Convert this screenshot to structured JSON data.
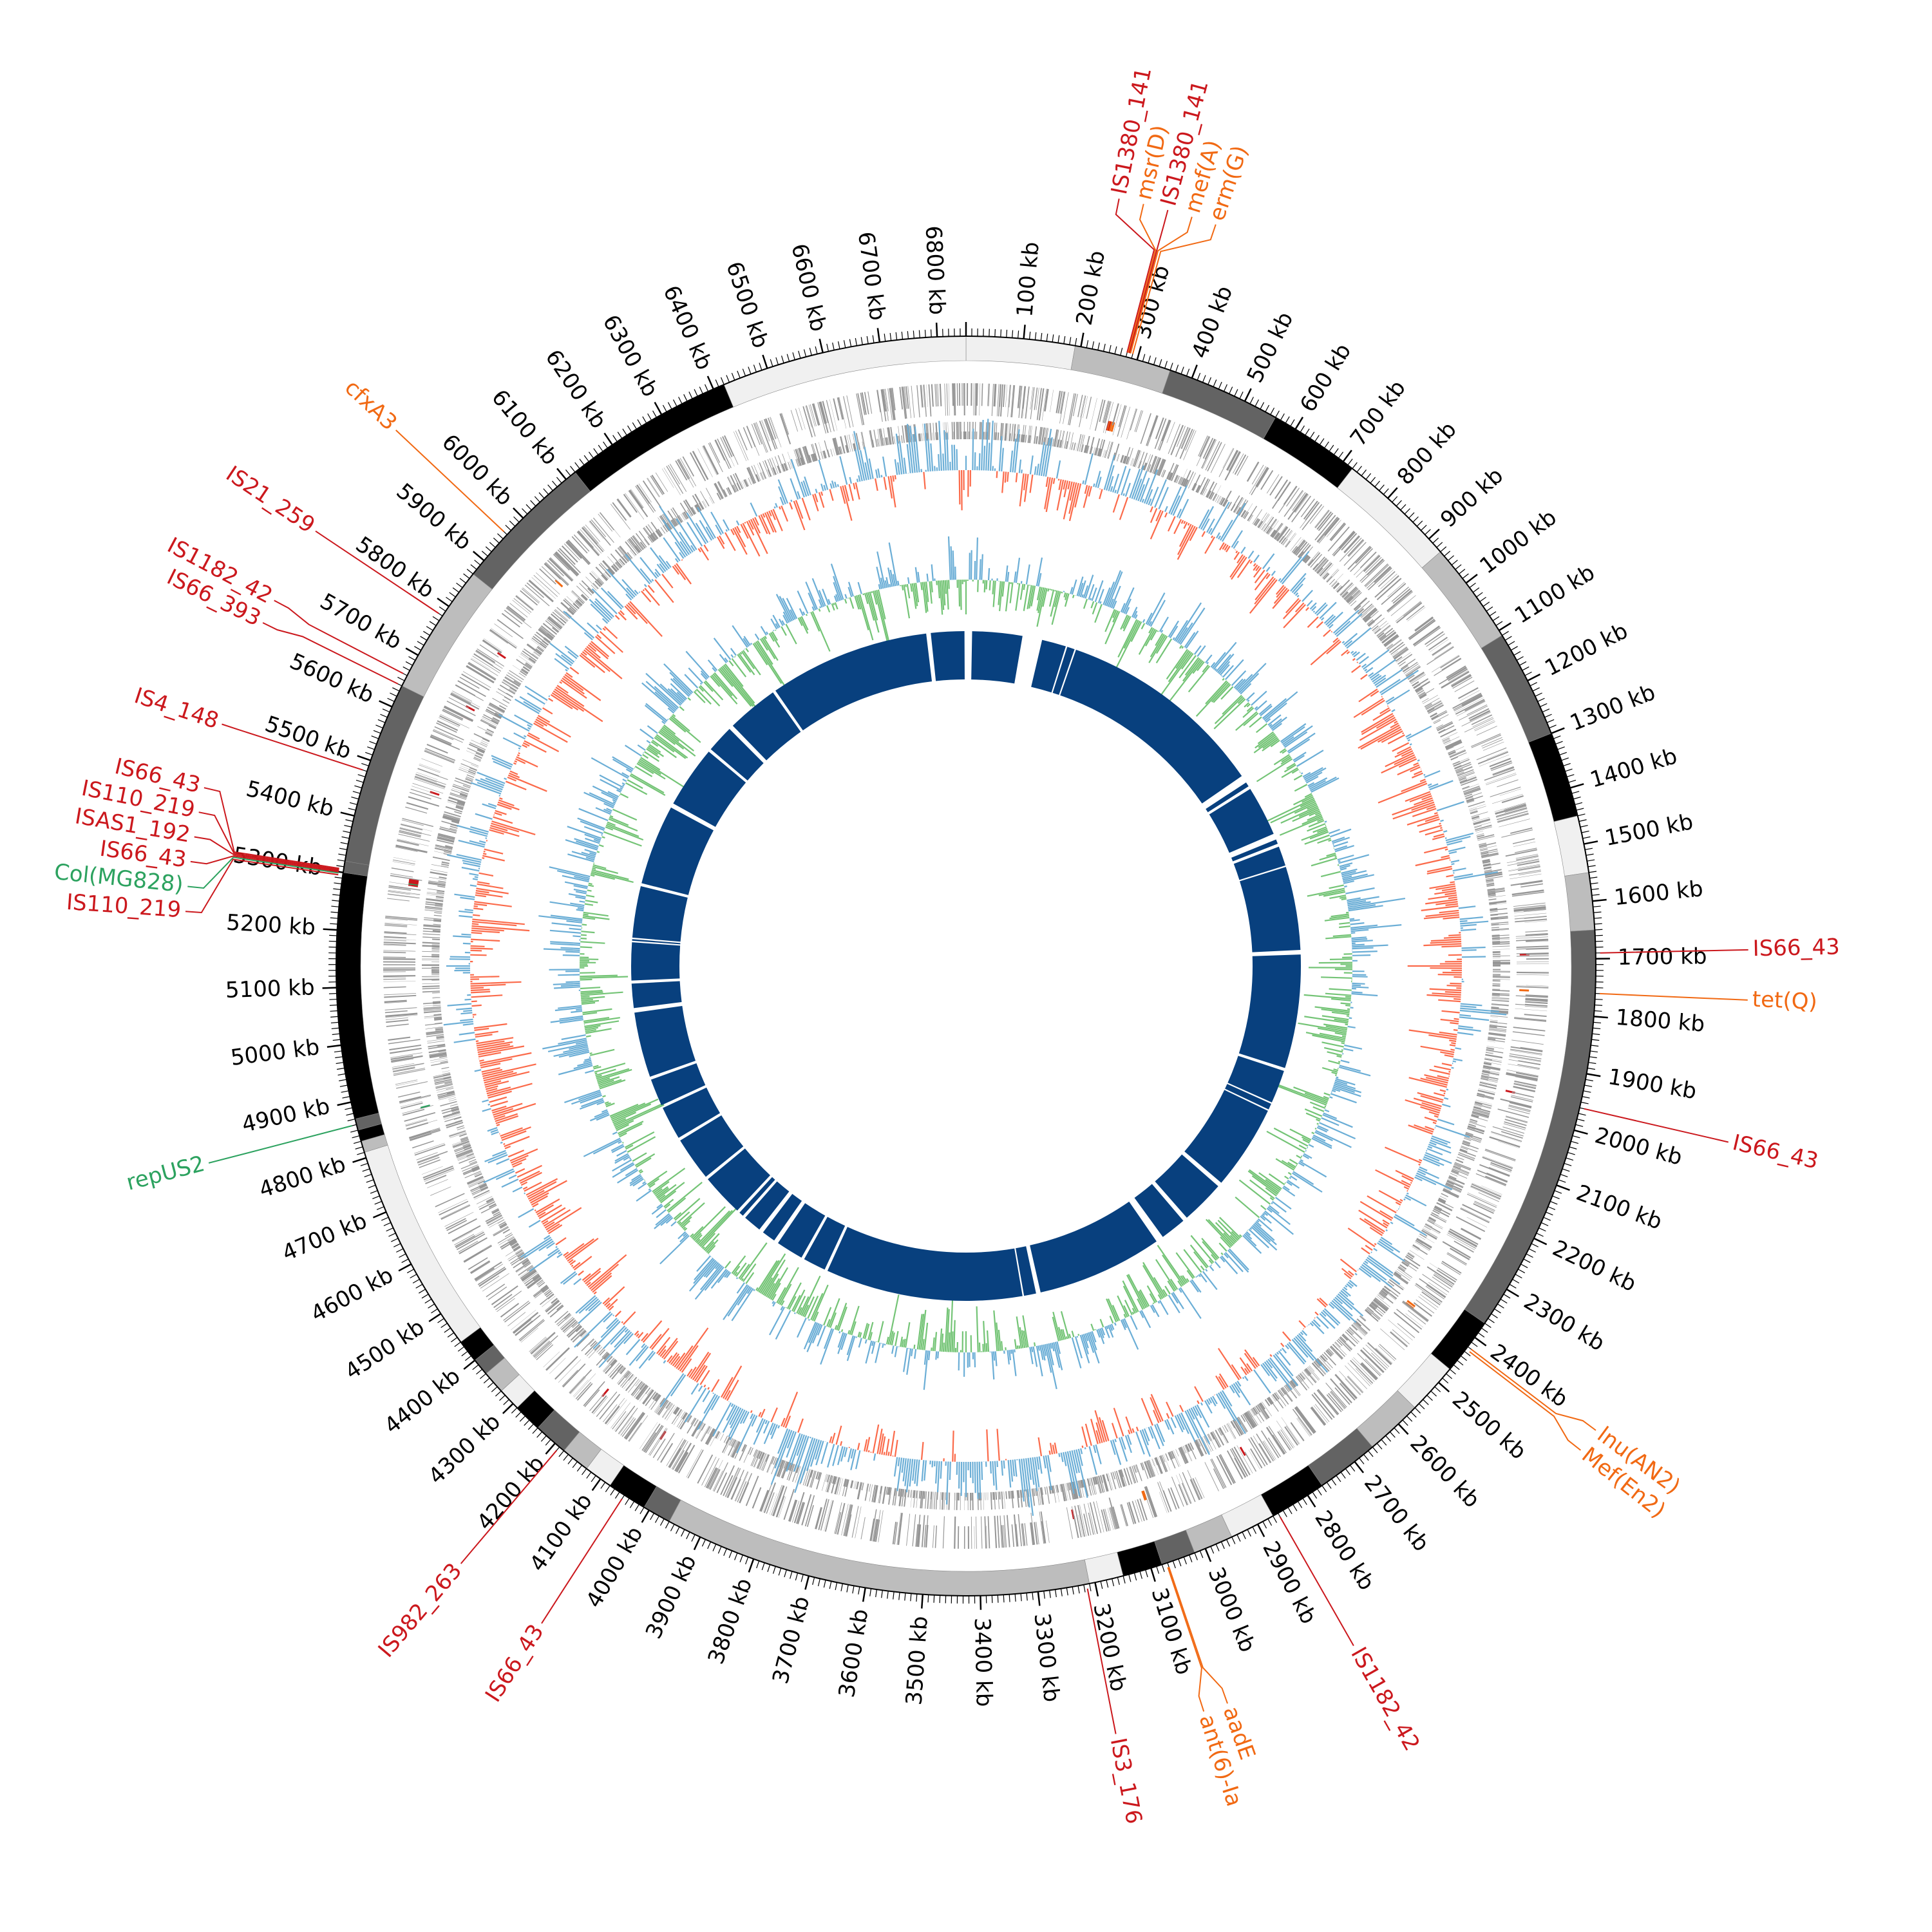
{
  "genome": {
    "length_kb": 6850,
    "ticks_kb": [
      100,
      200,
      300,
      400,
      500,
      600,
      700,
      800,
      900,
      1000,
      1100,
      1200,
      1300,
      1400,
      1500,
      1600,
      1700,
      1800,
      1900,
      2000,
      2100,
      2200,
      2300,
      2400,
      2500,
      2600,
      2700,
      2800,
      2900,
      3000,
      3100,
      3200,
      3300,
      3400,
      3500,
      3600,
      3700,
      3800,
      3900,
      4000,
      4100,
      4200,
      4300,
      4400,
      4500,
      4600,
      4700,
      4800,
      4900,
      5000,
      5100,
      5200,
      5300,
      5400,
      5500,
      5600,
      5700,
      5800,
      5900,
      6000,
      6100,
      6200,
      6300,
      6400,
      6500,
      6600,
      6700,
      6800
    ],
    "tick_label_suffix": " kb"
  },
  "contigs": [
    {
      "start": 0,
      "end": 190,
      "shade": "#f0f0f0"
    },
    {
      "start": 190,
      "end": 360,
      "shade": "#bdbdbd"
    },
    {
      "start": 360,
      "end": 560,
      "shade": "#636363"
    },
    {
      "start": 560,
      "end": 720,
      "shade": "#000000"
    },
    {
      "start": 720,
      "end": 930,
      "shade": "#f0f0f0"
    },
    {
      "start": 930,
      "end": 1110,
      "shade": "#bdbdbd"
    },
    {
      "start": 1110,
      "end": 1300,
      "shade": "#636363"
    },
    {
      "start": 1300,
      "end": 1450,
      "shade": "#000000"
    },
    {
      "start": 1450,
      "end": 1550,
      "shade": "#f0f0f0"
    },
    {
      "start": 1550,
      "end": 1650,
      "shade": "#bdbdbd"
    },
    {
      "start": 1650,
      "end": 2370,
      "shade": "#636363"
    },
    {
      "start": 2370,
      "end": 2470,
      "shade": "#000000"
    },
    {
      "start": 2470,
      "end": 2560,
      "shade": "#f0f0f0"
    },
    {
      "start": 2560,
      "end": 2660,
      "shade": "#bdbdbd"
    },
    {
      "start": 2660,
      "end": 2770,
      "shade": "#636363"
    },
    {
      "start": 2770,
      "end": 2870,
      "shade": "#000000"
    },
    {
      "start": 2870,
      "end": 2950,
      "shade": "#f0f0f0"
    },
    {
      "start": 2950,
      "end": 3020,
      "shade": "#bdbdbd"
    },
    {
      "start": 3020,
      "end": 3080,
      "shade": "#636363"
    },
    {
      "start": 3080,
      "end": 3150,
      "shade": "#000000"
    },
    {
      "start": 3150,
      "end": 3210,
      "shade": "#f0f0f0"
    },
    {
      "start": 3210,
      "end": 3960,
      "shade": "#bdbdbd"
    },
    {
      "start": 3960,
      "end": 4010,
      "shade": "#636363"
    },
    {
      "start": 4010,
      "end": 4080,
      "shade": "#000000"
    },
    {
      "start": 4080,
      "end": 4130,
      "shade": "#f0f0f0"
    },
    {
      "start": 4130,
      "end": 4180,
      "shade": "#bdbdbd"
    },
    {
      "start": 4180,
      "end": 4240,
      "shade": "#636363"
    },
    {
      "start": 4240,
      "end": 4290,
      "shade": "#000000"
    },
    {
      "start": 4290,
      "end": 4330,
      "shade": "#f0f0f0"
    },
    {
      "start": 4330,
      "end": 4370,
      "shade": "#bdbdbd"
    },
    {
      "start": 4370,
      "end": 4400,
      "shade": "#636363"
    },
    {
      "start": 4400,
      "end": 4440,
      "shade": "#000000"
    },
    {
      "start": 4440,
      "end": 4810,
      "shade": "#f0f0f0"
    },
    {
      "start": 4810,
      "end": 4830,
      "shade": "#bdbdbd"
    },
    {
      "start": 4830,
      "end": 4850,
      "shade": "#000000"
    },
    {
      "start": 4850,
      "end": 4870,
      "shade": "#636363"
    },
    {
      "start": 4870,
      "end": 5300,
      "shade": "#000000"
    },
    {
      "start": 5300,
      "end": 5320,
      "shade": "#636363"
    },
    {
      "start": 5320,
      "end": 5640,
      "shade": "#636363"
    },
    {
      "start": 5640,
      "end": 5870,
      "shade": "#bdbdbd"
    },
    {
      "start": 5870,
      "end": 6120,
      "shade": "#636363"
    },
    {
      "start": 6120,
      "end": 6420,
      "shade": "#000000"
    },
    {
      "start": 6420,
      "end": 6850,
      "shade": "#f0f0f0"
    }
  ],
  "blast_blocks": [
    {
      "start": 20,
      "end": 185
    },
    {
      "start": 250,
      "end": 330
    },
    {
      "start": 335,
      "end": 360
    },
    {
      "start": 365,
      "end": 1055
    },
    {
      "start": 1080,
      "end": 1095
    },
    {
      "start": 1100,
      "end": 1100
    },
    {
      "start": 1105,
      "end": 1270
    },
    {
      "start": 1290,
      "end": 1305
    },
    {
      "start": 1315,
      "end": 1380
    },
    {
      "start": 1385,
      "end": 1660
    },
    {
      "start": 1675,
      "end": 2050
    },
    {
      "start": 2060,
      "end": 2170
    },
    {
      "start": 2175,
      "end": 2195
    },
    {
      "start": 2200,
      "end": 2480
    },
    {
      "start": 2495,
      "end": 2640
    },
    {
      "start": 2655,
      "end": 2740
    },
    {
      "start": 2765,
      "end": 3180
    },
    {
      "start": 3195,
      "end": 3235
    },
    {
      "start": 3240,
      "end": 3890
    },
    {
      "start": 3900,
      "end": 3975
    },
    {
      "start": 3985,
      "end": 4075
    },
    {
      "start": 4090,
      "end": 4135
    },
    {
      "start": 4150,
      "end": 4210
    },
    {
      "start": 4220,
      "end": 4235
    },
    {
      "start": 4245,
      "end": 4385
    },
    {
      "start": 4395,
      "end": 4540
    },
    {
      "start": 4550,
      "end": 4660
    },
    {
      "start": 4670,
      "end": 4760
    },
    {
      "start": 4770,
      "end": 4985
    },
    {
      "start": 5000,
      "end": 5080
    },
    {
      "start": 5090,
      "end": 5215
    },
    {
      "start": 5220,
      "end": 5225
    },
    {
      "start": 5230,
      "end": 5400
    },
    {
      "start": 5410,
      "end": 5675
    },
    {
      "start": 5690,
      "end": 5895
    },
    {
      "start": 5905,
      "end": 5995
    },
    {
      "start": 6010,
      "end": 6180
    },
    {
      "start": 6190,
      "end": 6720
    },
    {
      "start": 6735,
      "end": 6845
    }
  ],
  "feature_colors": {
    "insertion": "#cb181d",
    "resistance": "#f16913",
    "plasmid": "#2ca25f"
  },
  "features": [
    {
      "label": "IS1380_141",
      "pos": 280,
      "type": "insertion"
    },
    {
      "label": "msr(D)",
      "pos": 282,
      "type": "resistance"
    },
    {
      "label": "IS1380_141",
      "pos": 284,
      "type": "insertion"
    },
    {
      "label": "mef(A)",
      "pos": 286,
      "type": "resistance"
    },
    {
      "label": "erm(G)",
      "pos": 290,
      "type": "resistance"
    },
    {
      "label": "IS66_43",
      "pos": 1690,
      "type": "insertion"
    },
    {
      "label": "tet(Q)",
      "pos": 1760,
      "type": "resistance"
    },
    {
      "label": "IS66_43",
      "pos": 1960,
      "type": "insertion"
    },
    {
      "label": "lnu(AN2)",
      "pos": 2420,
      "type": "resistance"
    },
    {
      "label": "Mef(En2)",
      "pos": 2425,
      "type": "resistance"
    },
    {
      "label": "IS1182_42",
      "pos": 2860,
      "type": "insertion"
    },
    {
      "label": "aadE",
      "pos": 3070,
      "type": "resistance"
    },
    {
      "label": "ant(6)-Ia",
      "pos": 3072,
      "type": "resistance"
    },
    {
      "label": "IS3_176",
      "pos": 3215,
      "type": "insertion"
    },
    {
      "label": "IS66_43",
      "pos": 4050,
      "type": "insertion"
    },
    {
      "label": "IS982_263",
      "pos": 4190,
      "type": "insertion"
    },
    {
      "label": "repUS2",
      "pos": 4860,
      "type": "plasmid"
    },
    {
      "label": "IS110_219",
      "pos": 5295,
      "type": "insertion"
    },
    {
      "label": "Col(MG828)",
      "pos": 5298,
      "type": "plasmid"
    },
    {
      "label": "IS66_43",
      "pos": 5300,
      "type": "insertion"
    },
    {
      "label": "ISAS1_192",
      "pos": 5302,
      "type": "insertion"
    },
    {
      "label": "IS110_219",
      "pos": 5304,
      "type": "insertion"
    },
    {
      "label": "IS66_43",
      "pos": 5306,
      "type": "insertion"
    },
    {
      "label": "IS4_148",
      "pos": 5480,
      "type": "insertion"
    },
    {
      "label": "IS66_393",
      "pos": 5640,
      "type": "insertion"
    },
    {
      "label": "IS1182_42",
      "pos": 5660,
      "type": "insertion"
    },
    {
      "label": "IS21_259",
      "pos": 5780,
      "type": "insertion"
    },
    {
      "label": "cfxA3",
      "pos": 5960,
      "type": "resistance"
    }
  ],
  "tracks": {
    "gc_skew_colors": {
      "positive": "#6baed6",
      "negative": "#fb6a4a"
    },
    "gc_content_colors": {
      "positive": "#6baed6",
      "negative": "#74c476"
    },
    "cds_color": "#969696",
    "blast_color": "#08407e",
    "contig_ring_colors": [
      "#f0f0f0",
      "#bdbdbd",
      "#636363",
      "#000000"
    ]
  }
}
